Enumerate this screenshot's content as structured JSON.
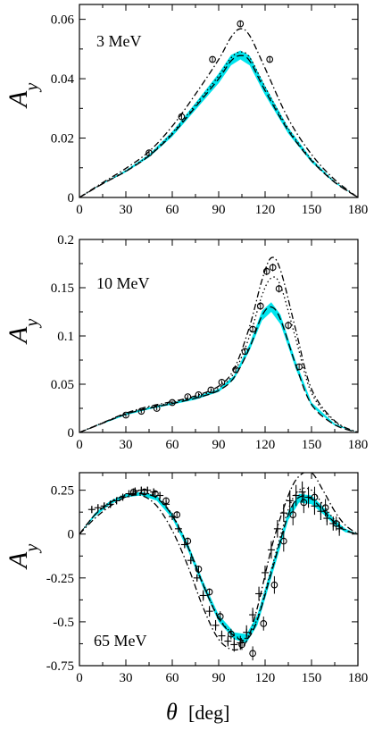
{
  "figure": {
    "x_axis_title_symbol": "θ",
    "x_axis_title_unit": "[deg]",
    "y_axis_title_main": "A",
    "y_axis_title_sub": "y",
    "band_color": "#00e5ee",
    "line_color": "#000000"
  },
  "chart_data": [
    {
      "type": "line",
      "panel_label": "3 MeV",
      "xlabel": "θ [deg]",
      "ylabel": "A_y",
      "xlim": [
        0,
        180
      ],
      "ylim": [
        0,
        0.065
      ],
      "x_ticks": [
        0,
        30,
        60,
        90,
        120,
        150,
        180
      ],
      "x_tick_labels": [
        "0",
        "30",
        "60",
        "90",
        "120",
        "150",
        "180"
      ],
      "y_ticks": [
        0,
        0.02,
        0.04,
        0.06
      ],
      "y_tick_labels": [
        "0",
        "0.02",
        "0.04",
        "0.06"
      ],
      "band": {
        "x": [
          0,
          15,
          30,
          45,
          60,
          75,
          90,
          98,
          104,
          110,
          120,
          135,
          150,
          165,
          180
        ],
        "lower": [
          0,
          0.0045,
          0.0085,
          0.0135,
          0.0205,
          0.0295,
          0.0385,
          0.0445,
          0.0465,
          0.0445,
          0.0345,
          0.0215,
          0.0118,
          0.0048,
          0
        ],
        "upper": [
          0,
          0.0048,
          0.0092,
          0.0145,
          0.0222,
          0.0318,
          0.0418,
          0.048,
          0.0495,
          0.0478,
          0.0375,
          0.0235,
          0.013,
          0.0054,
          0
        ]
      },
      "series": [
        {
          "style": "dashed",
          "x": [
            0,
            15,
            30,
            45,
            60,
            75,
            90,
            98,
            104,
            110,
            120,
            135,
            150,
            165,
            180
          ],
          "y": [
            0,
            0.0046,
            0.0088,
            0.014,
            0.0213,
            0.0305,
            0.04,
            0.046,
            0.0478,
            0.046,
            0.036,
            0.0225,
            0.0124,
            0.0051,
            0
          ]
        },
        {
          "style": "dash-dot",
          "x": [
            0,
            15,
            30,
            45,
            60,
            75,
            90,
            98,
            104,
            110,
            120,
            135,
            150,
            165,
            180
          ],
          "y": [
            0,
            0.005,
            0.0098,
            0.0155,
            0.024,
            0.0348,
            0.0465,
            0.054,
            0.0568,
            0.0545,
            0.0435,
            0.0265,
            0.0145,
            0.006,
            0
          ]
        },
        {
          "style": "dotted",
          "x": [
            0,
            15,
            30,
            45,
            60,
            75,
            90,
            98,
            104,
            110,
            120,
            135,
            150,
            165,
            180
          ],
          "y": [
            0,
            0.0047,
            0.009,
            0.0143,
            0.0218,
            0.0312,
            0.041,
            0.047,
            0.049,
            0.0472,
            0.0372,
            0.0232,
            0.0128,
            0.0053,
            0
          ]
        }
      ],
      "points": {
        "marker": "circle",
        "x": [
          45,
          66,
          86,
          104,
          123
        ],
        "y": [
          0.015,
          0.0272,
          0.0465,
          0.0585,
          0.0465
        ],
        "err": [
          0.0008,
          0.0008,
          0.0008,
          0.001,
          0.0008
        ]
      }
    },
    {
      "type": "line",
      "panel_label": "10 MeV",
      "xlabel": "θ [deg]",
      "ylabel": "A_y",
      "xlim": [
        0,
        180
      ],
      "ylim": [
        0,
        0.2
      ],
      "x_ticks": [
        0,
        30,
        60,
        90,
        120,
        150,
        180
      ],
      "x_tick_labels": [
        "0",
        "30",
        "60",
        "90",
        "120",
        "150",
        "180"
      ],
      "y_ticks": [
        0,
        0.05,
        0.1,
        0.15,
        0.2
      ],
      "y_tick_labels": [
        "0",
        "0.05",
        "0.1",
        "0.15",
        "0.2"
      ],
      "band": {
        "x": [
          0,
          15,
          30,
          45,
          60,
          75,
          90,
          100,
          110,
          118,
          124,
          130,
          140,
          150,
          165,
          180
        ],
        "lower": [
          0,
          0.009,
          0.018,
          0.024,
          0.029,
          0.034,
          0.042,
          0.055,
          0.085,
          0.116,
          0.125,
          0.112,
          0.065,
          0.027,
          0.007,
          0
        ],
        "upper": [
          0,
          0.01,
          0.02,
          0.026,
          0.031,
          0.037,
          0.045,
          0.059,
          0.092,
          0.126,
          0.135,
          0.122,
          0.073,
          0.031,
          0.009,
          0
        ]
      },
      "series": [
        {
          "style": "dashed",
          "x": [
            0,
            15,
            30,
            45,
            60,
            75,
            90,
            100,
            110,
            118,
            124,
            130,
            140,
            150,
            165,
            180
          ],
          "y": [
            0,
            0.0095,
            0.019,
            0.025,
            0.03,
            0.0355,
            0.0435,
            0.057,
            0.088,
            0.121,
            0.13,
            0.117,
            0.069,
            0.029,
            0.008,
            0
          ]
        },
        {
          "style": "dash-dot",
          "x": [
            0,
            15,
            30,
            45,
            60,
            75,
            90,
            100,
            110,
            118,
            124,
            130,
            140,
            150,
            165,
            180
          ],
          "y": [
            0,
            0.01,
            0.02,
            0.027,
            0.032,
            0.038,
            0.048,
            0.066,
            0.11,
            0.158,
            0.181,
            0.168,
            0.105,
            0.045,
            0.012,
            0
          ]
        },
        {
          "style": "dotted",
          "x": [
            0,
            15,
            30,
            45,
            60,
            75,
            90,
            100,
            110,
            118,
            124,
            130,
            140,
            150,
            165,
            180
          ],
          "y": [
            0,
            0.01,
            0.0195,
            0.026,
            0.031,
            0.037,
            0.046,
            0.062,
            0.1,
            0.142,
            0.16,
            0.152,
            0.096,
            0.041,
            0.011,
            0
          ]
        }
      ],
      "points": {
        "marker": "circle",
        "x": [
          30,
          40,
          50,
          60,
          70,
          77,
          85,
          92,
          101,
          107,
          112,
          117,
          121,
          125,
          129,
          135,
          142
        ],
        "y": [
          0.018,
          0.022,
          0.025,
          0.031,
          0.037,
          0.039,
          0.044,
          0.052,
          0.065,
          0.084,
          0.107,
          0.131,
          0.167,
          0.171,
          0.149,
          0.111,
          0.068
        ],
        "err": [
          0.002,
          0.002,
          0.002,
          0.002,
          0.002,
          0.002,
          0.002,
          0.002,
          0.003,
          0.003,
          0.003,
          0.004,
          0.004,
          0.004,
          0.004,
          0.004,
          0.003
        ]
      }
    },
    {
      "type": "line",
      "panel_label": "65 MeV",
      "xlabel": "θ [deg]",
      "ylabel": "A_y",
      "xlim": [
        0,
        180
      ],
      "ylim": [
        -0.75,
        0.35
      ],
      "x_ticks": [
        0,
        30,
        60,
        90,
        120,
        150,
        180
      ],
      "x_tick_labels": [
        "0",
        "30",
        "60",
        "90",
        "120",
        "150",
        "180"
      ],
      "y_ticks": [
        -0.75,
        -0.5,
        -0.25,
        0,
        0.25
      ],
      "y_tick_labels": [
        "-0.75",
        "-0.5",
        "-0.25",
        "0",
        "0.25"
      ],
      "band": {
        "x": [
          0,
          10,
          20,
          30,
          40,
          50,
          60,
          70,
          80,
          90,
          100,
          108,
          115,
          125,
          135,
          142,
          150,
          158,
          165,
          172,
          180
        ],
        "lower": [
          0,
          0.1,
          0.17,
          0.21,
          0.22,
          0.19,
          0.09,
          -0.09,
          -0.31,
          -0.5,
          -0.6,
          -0.62,
          -0.52,
          -0.22,
          0.08,
          0.18,
          0.17,
          0.11,
          0.05,
          0.01,
          0
        ],
        "upper": [
          0,
          0.12,
          0.19,
          0.23,
          0.24,
          0.22,
          0.12,
          -0.05,
          -0.27,
          -0.46,
          -0.56,
          -0.57,
          -0.46,
          -0.16,
          0.13,
          0.23,
          0.22,
          0.15,
          0.08,
          0.03,
          0
        ]
      },
      "series": [
        {
          "style": "dashed",
          "x": [
            0,
            10,
            20,
            30,
            40,
            50,
            60,
            70,
            80,
            90,
            100,
            108,
            115,
            125,
            135,
            142,
            150,
            158,
            165,
            172,
            180
          ],
          "y": [
            0,
            0.11,
            0.18,
            0.22,
            0.23,
            0.205,
            0.105,
            -0.07,
            -0.29,
            -0.48,
            -0.58,
            -0.6,
            -0.49,
            -0.19,
            0.11,
            0.21,
            0.2,
            0.13,
            0.065,
            0.02,
            0
          ]
        },
        {
          "style": "dash-dot",
          "x": [
            0,
            10,
            20,
            30,
            40,
            50,
            60,
            70,
            80,
            90,
            100,
            108,
            115,
            125,
            135,
            142,
            150,
            158,
            165,
            172,
            180
          ],
          "y": [
            0,
            0.09,
            0.16,
            0.21,
            0.22,
            0.16,
            0.02,
            -0.18,
            -0.42,
            -0.6,
            -0.66,
            -0.61,
            -0.42,
            -0.05,
            0.22,
            0.33,
            0.35,
            0.24,
            0.13,
            0.05,
            0
          ]
        },
        {
          "style": "dotted",
          "x": [
            0,
            10,
            20,
            30,
            40,
            50,
            60,
            70,
            80,
            90,
            100,
            108,
            115,
            125,
            135,
            142,
            150,
            158,
            165,
            172,
            180
          ],
          "y": [
            0,
            0.11,
            0.185,
            0.225,
            0.235,
            0.21,
            0.11,
            -0.065,
            -0.285,
            -0.475,
            -0.575,
            -0.59,
            -0.48,
            -0.17,
            0.14,
            0.25,
            0.25,
            0.16,
            0.08,
            0.025,
            0
          ]
        }
      ],
      "points": {
        "marker": "circle",
        "x": [
          35,
          42,
          49,
          56,
          63,
          70,
          77,
          84,
          91,
          98,
          105,
          112,
          119,
          126,
          132,
          138,
          145,
          152,
          159,
          166
        ],
        "y": [
          0.24,
          0.24,
          0.23,
          0.19,
          0.11,
          -0.04,
          -0.2,
          -0.33,
          -0.47,
          -0.57,
          -0.63,
          -0.68,
          -0.51,
          -0.29,
          -0.04,
          0.11,
          0.18,
          0.21,
          0.15,
          0.06
        ],
        "err": [
          0.02,
          0.02,
          0.02,
          0.02,
          0.02,
          0.02,
          0.02,
          0.02,
          0.03,
          0.03,
          0.03,
          0.04,
          0.04,
          0.05,
          0.06,
          0.06,
          0.06,
          0.06,
          0.05,
          0.04
        ]
      },
      "points2": {
        "marker": "plus",
        "x": [
          8,
          12,
          16,
          20,
          24,
          28,
          32,
          36,
          40,
          44,
          48,
          52,
          56,
          60,
          64,
          68,
          72,
          76,
          80,
          84,
          88,
          92,
          96,
          100,
          104,
          108,
          112,
          116,
          120,
          124,
          128,
          132,
          136,
          140,
          144,
          148,
          152,
          156,
          160,
          164,
          168
        ],
        "y": [
          0.14,
          0.15,
          0.16,
          0.17,
          0.19,
          0.21,
          0.23,
          0.245,
          0.25,
          0.25,
          0.24,
          0.22,
          0.17,
          0.1,
          0.03,
          -0.06,
          -0.15,
          -0.25,
          -0.35,
          -0.44,
          -0.52,
          -0.58,
          -0.61,
          -0.63,
          -0.62,
          -0.56,
          -0.46,
          -0.34,
          -0.22,
          -0.09,
          0.03,
          0.12,
          0.19,
          0.22,
          0.24,
          0.21,
          0.16,
          0.13,
          0.09,
          0.06,
          0.03
        ],
        "err": [
          0.02,
          0.02,
          0.02,
          0.02,
          0.02,
          0.02,
          0.02,
          0.02,
          0.02,
          0.02,
          0.02,
          0.02,
          0.02,
          0.02,
          0.02,
          0.02,
          0.02,
          0.02,
          0.03,
          0.03,
          0.03,
          0.03,
          0.03,
          0.04,
          0.04,
          0.04,
          0.04,
          0.04,
          0.04,
          0.05,
          0.05,
          0.05,
          0.06,
          0.06,
          0.06,
          0.06,
          0.05,
          0.05,
          0.04,
          0.04,
          0.04
        ]
      }
    }
  ]
}
